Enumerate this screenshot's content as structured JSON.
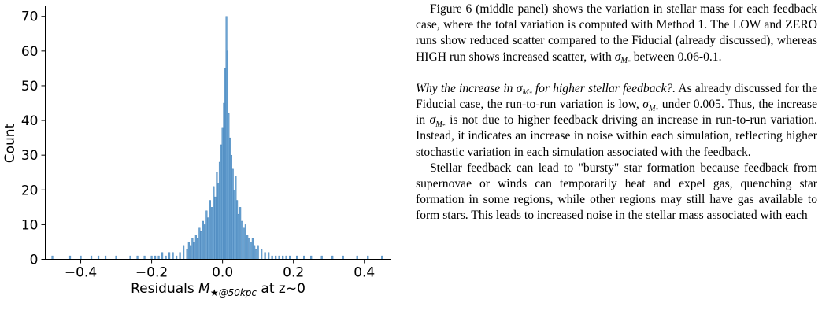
{
  "chart_data": {
    "type": "bar",
    "title": "",
    "xlabel": "Residuals M★@50kpc at z~0",
    "xlabel_parts": {
      "prefix": "Residuals ",
      "sym": "M",
      "sub": "★@50kpc",
      "suffix": " at z~0"
    },
    "ylabel": "Count",
    "xlim": [
      -0.5,
      0.475
    ],
    "ylim": [
      0,
      73
    ],
    "xticks": [
      -0.4,
      -0.2,
      0.0,
      0.2,
      0.4
    ],
    "xtick_labels": [
      "−0.4",
      "−0.2",
      "0.0",
      "0.2",
      "0.4"
    ],
    "yticks": [
      0,
      10,
      20,
      30,
      40,
      50,
      60,
      70
    ],
    "ytick_labels": [
      "0",
      "10",
      "20",
      "30",
      "40",
      "50",
      "60",
      "70"
    ],
    "grid": false,
    "bar_color": "#6ba3d2",
    "edge_color": "#3f7fb8",
    "bin_width": 0.0039,
    "bins": [
      [
        -0.48,
        1
      ],
      [
        -0.43,
        1
      ],
      [
        -0.4,
        1
      ],
      [
        -0.37,
        1
      ],
      [
        -0.35,
        1
      ],
      [
        -0.33,
        1
      ],
      [
        -0.3,
        1
      ],
      [
        -0.26,
        1
      ],
      [
        -0.24,
        1
      ],
      [
        -0.22,
        1
      ],
      [
        -0.2,
        1
      ],
      [
        -0.19,
        1
      ],
      [
        -0.18,
        1
      ],
      [
        -0.17,
        2
      ],
      [
        -0.16,
        1
      ],
      [
        -0.15,
        2
      ],
      [
        -0.14,
        2
      ],
      [
        -0.13,
        1
      ],
      [
        -0.12,
        2
      ],
      [
        -0.11,
        4
      ],
      [
        -0.1,
        3
      ],
      [
        -0.095,
        5
      ],
      [
        -0.09,
        4
      ],
      [
        -0.085,
        6
      ],
      [
        -0.08,
        5
      ],
      [
        -0.075,
        7
      ],
      [
        -0.07,
        6
      ],
      [
        -0.065,
        9
      ],
      [
        -0.06,
        8
      ],
      [
        -0.055,
        11
      ],
      [
        -0.05,
        10
      ],
      [
        -0.045,
        14
      ],
      [
        -0.04,
        12
      ],
      [
        -0.035,
        17
      ],
      [
        -0.03,
        15
      ],
      [
        -0.025,
        21
      ],
      [
        -0.02,
        18
      ],
      [
        -0.016,
        25
      ],
      [
        -0.012,
        22
      ],
      [
        -0.008,
        28
      ],
      [
        -0.004,
        33
      ],
      [
        0.0,
        38
      ],
      [
        0.004,
        45
      ],
      [
        0.008,
        55
      ],
      [
        0.011,
        70
      ],
      [
        0.014,
        60
      ],
      [
        0.017,
        42
      ],
      [
        0.021,
        35
      ],
      [
        0.025,
        30
      ],
      [
        0.029,
        26
      ],
      [
        0.033,
        20
      ],
      [
        0.037,
        24
      ],
      [
        0.041,
        17
      ],
      [
        0.045,
        13
      ],
      [
        0.05,
        15
      ],
      [
        0.055,
        11
      ],
      [
        0.06,
        9
      ],
      [
        0.065,
        10
      ],
      [
        0.07,
        7
      ],
      [
        0.075,
        6
      ],
      [
        0.08,
        5
      ],
      [
        0.085,
        6
      ],
      [
        0.09,
        4
      ],
      [
        0.095,
        3
      ],
      [
        0.1,
        4
      ],
      [
        0.11,
        3
      ],
      [
        0.12,
        2
      ],
      [
        0.13,
        2
      ],
      [
        0.14,
        1
      ],
      [
        0.15,
        1
      ],
      [
        0.16,
        1
      ],
      [
        0.17,
        1
      ],
      [
        0.18,
        1
      ],
      [
        0.19,
        1
      ],
      [
        0.21,
        1
      ],
      [
        0.23,
        1
      ],
      [
        0.25,
        1
      ],
      [
        0.28,
        1
      ],
      [
        0.31,
        1
      ],
      [
        0.34,
        1
      ],
      [
        0.38,
        1
      ],
      [
        0.41,
        1
      ],
      [
        0.45,
        1
      ]
    ]
  },
  "text": {
    "p1_a": "Figure 6 (middle panel) shows the variation in stellar mass for each feedback case, where the total variation is computed with Method 1. The LOW and ZERO runs show reduced scatter compared to the Fiducial (already discussed), whereas HIGH run shows increased scatter, with ",
    "p1_b": " between 0.06-0.1.",
    "p2_head_a": "Why the increase in ",
    "p2_head_b": " for higher stellar feedback?.",
    "p2_a": " As already discussed for the Fiducial case, the run-to-run variation is low, ",
    "p2_b": " under 0.005. Thus, the increase in ",
    "p2_c": " is not due to higher feedback driving an increase in run-to-run variation. Instead, it indicates an increase in noise within each simulation, reflecting higher stochastic variation in each simulation associated with the feedback.",
    "p3": "Stellar feedback can lead to \"bursty\" star formation because feedback from supernovae or winds can temporarily heat and expel gas, quenching star formation in some regions, while other regions may still have gas available to form stars. This leads to increased noise in the stellar mass associated with each",
    "sigma_sym": "σ",
    "sigma_sub": "M",
    "sigma_subsub": "*"
  }
}
